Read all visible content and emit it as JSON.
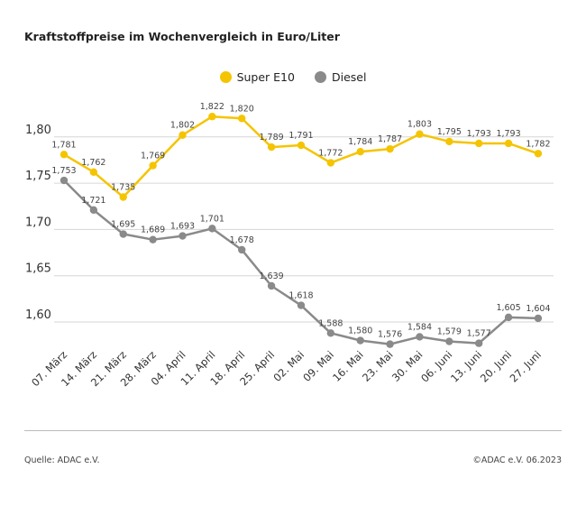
{
  "title": "Kraftstoffpreise im Wochenvergleich in Euro/Liter",
  "footer": {
    "source": "Quelle: ADAC e.V.",
    "copyright": "©ADAC e.V. 06.2023"
  },
  "chart_data": {
    "type": "line",
    "title": "Kraftstoffpreise im Wochenvergleich in Euro/Liter",
    "categories": [
      "07. März",
      "14. März",
      "21. März",
      "28. März",
      "04. April",
      "11. April",
      "18. April",
      "25. April",
      "02. Mai",
      "09. Mai",
      "16. Mai",
      "23. Mai",
      "30. Mai",
      "06. Juni",
      "13. Juni",
      "20. Juni",
      "27. Juni"
    ],
    "series": [
      {
        "name": "Super E10",
        "color": "#f5c400",
        "values": [
          1.781,
          1.762,
          1.735,
          1.769,
          1.802,
          1.822,
          1.82,
          1.789,
          1.791,
          1.772,
          1.784,
          1.787,
          1.803,
          1.795,
          1.793,
          1.793,
          1.782
        ]
      },
      {
        "name": "Diesel",
        "color": "#8a8a8a",
        "values": [
          1.753,
          1.721,
          1.695,
          1.689,
          1.693,
          1.701,
          1.678,
          1.639,
          1.618,
          1.588,
          1.58,
          1.576,
          1.584,
          1.579,
          1.577,
          1.605,
          1.604
        ]
      }
    ],
    "yticks": [
      "1,80",
      "1,75",
      "1,70",
      "1,65",
      "1,60"
    ],
    "ylim": [
      1.6,
      1.8
    ],
    "grid": true,
    "legend": "top-center",
    "decimal_separator": ","
  }
}
